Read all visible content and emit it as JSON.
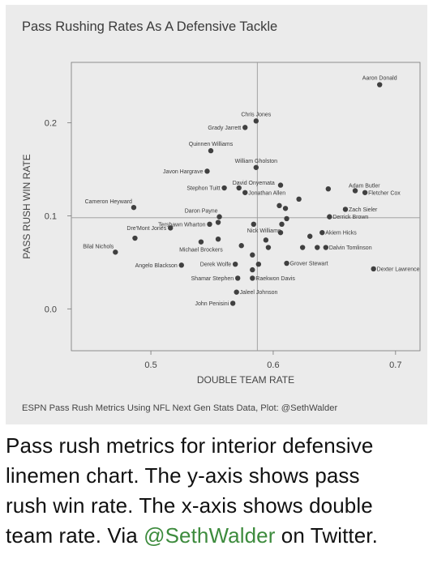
{
  "chart_data": {
    "type": "scatter",
    "title": "Pass Rushing Rates As A Defensive Tackle",
    "xlabel": "DOUBLE TEAM RATE",
    "ylabel": "PASS RUSH WIN RATE",
    "source": "ESPN Pass Rush Metrics Using NFL Next Gen Stats Data, Plot: @SethWalder",
    "xlim": [
      0.435,
      0.72
    ],
    "ylim": [
      -0.045,
      0.265
    ],
    "xticks": [
      0.5,
      0.6,
      0.7
    ],
    "xtick_labels": [
      "0.5",
      "0.6",
      "0.7"
    ],
    "yticks": [
      0.0,
      0.1,
      0.2
    ],
    "ytick_labels": [
      "0.0",
      "0.1",
      "0.2"
    ],
    "ref_x": 0.587,
    "ref_y": 0.098,
    "grid": false,
    "point_color": "#404040",
    "points": [
      {
        "x": 0.687,
        "y": 0.241,
        "label": "Aaron Donald",
        "pos": "top"
      },
      {
        "x": 0.586,
        "y": 0.202,
        "label": "Chris Jones",
        "pos": "top"
      },
      {
        "x": 0.577,
        "y": 0.195,
        "label": "Grady Jarrett",
        "pos": "left"
      },
      {
        "x": 0.549,
        "y": 0.17,
        "label": "Quinnen Williams",
        "pos": "top"
      },
      {
        "x": 0.586,
        "y": 0.152,
        "label": "William Gholston",
        "pos": "top"
      },
      {
        "x": 0.546,
        "y": 0.148,
        "label": "Javon Hargrave",
        "pos": "left"
      },
      {
        "x": 0.572,
        "y": 0.13,
        "label": "David Onyemata",
        "pos": "topright"
      },
      {
        "x": 0.56,
        "y": 0.13,
        "label": "Stephon Tuitt",
        "pos": "left"
      },
      {
        "x": 0.577,
        "y": 0.125,
        "label": "Jonathan Allen",
        "pos": "right"
      },
      {
        "x": 0.606,
        "y": 0.133,
        "label": "",
        "pos": "none"
      },
      {
        "x": 0.645,
        "y": 0.129,
        "label": "",
        "pos": "none"
      },
      {
        "x": 0.667,
        "y": 0.127,
        "label": "Adam Butler",
        "pos": "topright"
      },
      {
        "x": 0.675,
        "y": 0.125,
        "label": "Fletcher Cox",
        "pos": "right"
      },
      {
        "x": 0.621,
        "y": 0.118,
        "label": "",
        "pos": "none"
      },
      {
        "x": 0.486,
        "y": 0.109,
        "label": "Cameron Heyward",
        "pos": "topleft"
      },
      {
        "x": 0.605,
        "y": 0.111,
        "label": "",
        "pos": "none"
      },
      {
        "x": 0.61,
        "y": 0.108,
        "label": "",
        "pos": "none"
      },
      {
        "x": 0.659,
        "y": 0.107,
        "label": "Zach Sieler",
        "pos": "right"
      },
      {
        "x": 0.556,
        "y": 0.099,
        "label": "Daron Payne",
        "pos": "topleft"
      },
      {
        "x": 0.548,
        "y": 0.091,
        "label": "Tershawn Wharton",
        "pos": "left"
      },
      {
        "x": 0.555,
        "y": 0.093,
        "label": "",
        "pos": "none"
      },
      {
        "x": 0.646,
        "y": 0.099,
        "label": "Derrick Brown",
        "pos": "right"
      },
      {
        "x": 0.611,
        "y": 0.097,
        "label": "",
        "pos": "none"
      },
      {
        "x": 0.607,
        "y": 0.091,
        "label": "",
        "pos": "none"
      },
      {
        "x": 0.584,
        "y": 0.091,
        "label": "Nick Williams",
        "pos": "bottomright"
      },
      {
        "x": 0.516,
        "y": 0.087,
        "label": "Dre'Mont Jones",
        "pos": "left"
      },
      {
        "x": 0.606,
        "y": 0.082,
        "label": "",
        "pos": "none"
      },
      {
        "x": 0.64,
        "y": 0.082,
        "label": "Akiem Hicks",
        "pos": "right"
      },
      {
        "x": 0.63,
        "y": 0.078,
        "label": "",
        "pos": "none"
      },
      {
        "x": 0.487,
        "y": 0.076,
        "label": "",
        "pos": "none"
      },
      {
        "x": 0.555,
        "y": 0.075,
        "label": "",
        "pos": "none"
      },
      {
        "x": 0.541,
        "y": 0.072,
        "label": "Michael Brockers",
        "pos": "bottom"
      },
      {
        "x": 0.594,
        "y": 0.074,
        "label": "",
        "pos": "none"
      },
      {
        "x": 0.471,
        "y": 0.061,
        "label": "Bilal Nichols",
        "pos": "topleft"
      },
      {
        "x": 0.574,
        "y": 0.068,
        "label": "",
        "pos": "none"
      },
      {
        "x": 0.596,
        "y": 0.066,
        "label": "",
        "pos": "none"
      },
      {
        "x": 0.624,
        "y": 0.066,
        "label": "",
        "pos": "none"
      },
      {
        "x": 0.636,
        "y": 0.066,
        "label": "",
        "pos": "none"
      },
      {
        "x": 0.643,
        "y": 0.066,
        "label": "Dalvin Tomlinson",
        "pos": "right"
      },
      {
        "x": 0.583,
        "y": 0.058,
        "label": "",
        "pos": "none"
      },
      {
        "x": 0.525,
        "y": 0.047,
        "label": "Angelo Blackson",
        "pos": "left"
      },
      {
        "x": 0.569,
        "y": 0.048,
        "label": "Derek Wolfe",
        "pos": "left"
      },
      {
        "x": 0.588,
        "y": 0.048,
        "label": "",
        "pos": "none"
      },
      {
        "x": 0.611,
        "y": 0.049,
        "label": "Grover Stewart",
        "pos": "right"
      },
      {
        "x": 0.682,
        "y": 0.043,
        "label": "Dexter Lawrence",
        "pos": "right"
      },
      {
        "x": 0.583,
        "y": 0.042,
        "label": "",
        "pos": "none"
      },
      {
        "x": 0.571,
        "y": 0.033,
        "label": "Shamar Stephen",
        "pos": "left"
      },
      {
        "x": 0.583,
        "y": 0.033,
        "label": "Raekwon Davis",
        "pos": "right"
      },
      {
        "x": 0.57,
        "y": 0.018,
        "label": "Jaleel Johnson",
        "pos": "right"
      },
      {
        "x": 0.567,
        "y": 0.006,
        "label": "John Penisini",
        "pos": "left"
      }
    ]
  },
  "caption": {
    "line1": "Pass rush metrics for interior defensive",
    "line2": "linemen chart. The y-axis shows pass",
    "line3": "rush win rate. The x-axis shows double",
    "line4_pre": "team rate. Via ",
    "handle": "@SethWalder",
    "line4_post": " on Twitter."
  }
}
